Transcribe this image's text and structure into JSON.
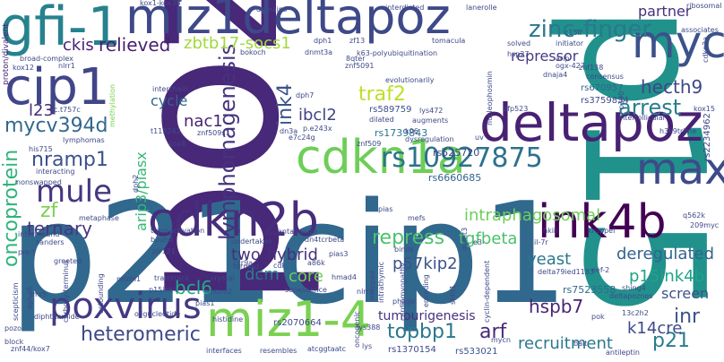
{
  "words": [
    {
      "text": "poz",
      "color": "#482878"
    },
    {
      "text": "p15",
      "color": "#21918c"
    },
    {
      "text": "p21cip1",
      "color": "#31688e"
    },
    {
      "text": "gfi-1",
      "color": "#26828e"
    },
    {
      "text": "miz1deltapoz",
      "color": "#3e4989"
    },
    {
      "text": "deltapoz",
      "color": "#482173"
    },
    {
      "text": "myc",
      "color": "#3b528b"
    },
    {
      "text": "cip1",
      "color": "#404688"
    },
    {
      "text": "cdkn1a",
      "color": "#6ece58"
    },
    {
      "text": "cdkn2b",
      "color": "#472d7b"
    },
    {
      "text": "ink4b",
      "color": "#440154"
    },
    {
      "text": "max",
      "color": "#3e4a89"
    },
    {
      "text": "miz1-4",
      "color": "#7ad151"
    },
    {
      "text": "poxvirus",
      "color": "#443983"
    },
    {
      "text": "mule",
      "color": "#453781"
    },
    {
      "text": "zinc-finger",
      "color": "#2a788e"
    },
    {
      "text": "rs10927875",
      "color": "#2c728e"
    },
    {
      "text": "lymphomagenesis",
      "color": "#46337f"
    },
    {
      "text": "oncoprotein",
      "color": "#2fb47c"
    },
    {
      "text": "relieved",
      "color": "#481f70"
    },
    {
      "text": "zbtb17-socs1",
      "color": "#9fda3a"
    },
    {
      "text": "traf2",
      "color": "#bddf26"
    },
    {
      "text": "ink4",
      "color": "#3b528b"
    },
    {
      "text": "ibcl2",
      "color": "#414487"
    },
    {
      "text": "cycle",
      "color": "#32658e"
    },
    {
      "text": "nac1",
      "color": "#482475"
    },
    {
      "text": "arrest",
      "color": "#287d8e"
    },
    {
      "text": "hecth9",
      "color": "#3f4788"
    },
    {
      "text": "mycv394d",
      "color": "#31688e"
    },
    {
      "text": "nramp1",
      "color": "#3b528b"
    },
    {
      "text": "l23",
      "color": "#472c7a"
    },
    {
      "text": "ckis",
      "color": "#482173"
    },
    {
      "text": "repressor",
      "color": "#443a83"
    },
    {
      "text": "partner",
      "color": "#46307e"
    },
    {
      "text": "arip3/piasx",
      "color": "#35b779"
    },
    {
      "text": "intraphagosomal",
      "color": "#6ece58"
    },
    {
      "text": "repress",
      "color": "#4ac16d"
    },
    {
      "text": "tgfbeta",
      "color": "#4ac16d"
    },
    {
      "text": "yeast",
      "color": "#2a788e"
    },
    {
      "text": "deregulated",
      "color": "#33638d"
    },
    {
      "text": "p57kip2",
      "color": "#3b528b"
    },
    {
      "text": "zf",
      "color": "#7ad151"
    },
    {
      "text": "ternary",
      "color": "#453781"
    },
    {
      "text": "two-hybrid",
      "color": "#46307e"
    },
    {
      "text": "dcm",
      "color": "#277f8e"
    },
    {
      "text": "core",
      "color": "#6ece58"
    },
    {
      "text": "bcl6",
      "color": "#22a884"
    },
    {
      "text": "heteromeric",
      "color": "#3e4989"
    },
    {
      "text": "topbp1",
      "color": "#2a788e"
    },
    {
      "text": "arf",
      "color": "#482878"
    },
    {
      "text": "recruitment",
      "color": "#2a788e"
    },
    {
      "text": "hspb7",
      "color": "#482475"
    },
    {
      "text": "p21",
      "color": "#287d8e"
    },
    {
      "text": "inr",
      "color": "#3b528b"
    },
    {
      "text": "k14cre",
      "color": "#3e4989"
    },
    {
      "text": "p15ink4b",
      "color": "#20a386"
    },
    {
      "text": "screen",
      "color": "#3b528b"
    },
    {
      "text": "tumourigenesis",
      "color": "#46307e"
    },
    {
      "text": "rs7523558",
      "color": "#31688e"
    },
    {
      "text": "rs6660685",
      "color": "#33638d"
    },
    {
      "text": "rs3759834",
      "color": "#3e4989"
    },
    {
      "text": "rs1739843",
      "color": "#2c728e"
    },
    {
      "text": "rs525720",
      "color": "#404688"
    },
    {
      "text": "rs589759",
      "color": "#3b528b"
    },
    {
      "text": "rs670957",
      "color": "#31688e"
    },
    {
      "text": "rs2070664",
      "color": "#3e4989"
    },
    {
      "text": "rs1370154",
      "color": "#3e4989"
    },
    {
      "text": "rs533021",
      "color": "#3b528b"
    },
    {
      "text": "rs2234962",
      "color": "#3e4989"
    },
    {
      "text": "proton/divalent",
      "color": "#482475"
    },
    {
      "text": "kox1-kox38",
      "color": "#3e4989"
    },
    {
      "text": "domains",
      "color": "#3e4989"
    },
    {
      "text": "interdicted",
      "color": "#3e4989"
    },
    {
      "text": "lanerolle",
      "color": "#3e4989"
    },
    {
      "text": "ribosomal",
      "color": "#3e4989"
    },
    {
      "text": "initiator",
      "color": "#3e4989"
    },
    {
      "text": "associates",
      "color": "#3e4989"
    },
    {
      "text": "broad-complex",
      "color": "#3e4989"
    },
    {
      "text": "kox12",
      "color": "#3e4989"
    },
    {
      "text": "nlrr1",
      "color": "#3e4989"
    },
    {
      "text": "methylation",
      "color": "#7ad151"
    },
    {
      "text": "c.t757c",
      "color": "#3e4989"
    },
    {
      "text": "lymphomas",
      "color": "#3e4989"
    },
    {
      "text": "his715",
      "color": "#3e4989"
    },
    {
      "text": "interacting",
      "color": "#3e4989"
    },
    {
      "text": "nonswapped",
      "color": "#3e4989"
    },
    {
      "text": "metaphase",
      "color": "#3e4989"
    },
    {
      "text": "intermound",
      "color": "#3e4989"
    },
    {
      "text": "sanders",
      "color": "#3e4989"
    },
    {
      "text": "carboxy-terminus",
      "color": "#3e4989"
    },
    {
      "text": "scepticism",
      "color": "#3e4989"
    },
    {
      "text": "diphthamide",
      "color": "#3e4989"
    },
    {
      "text": "znf44/kox7",
      "color": "#3e4989"
    },
    {
      "text": "interfaces",
      "color": "#3e4989"
    },
    {
      "text": "resembles",
      "color": "#3e4989"
    },
    {
      "text": "atcggtaatc",
      "color": "#3e4989"
    },
    {
      "text": "oncogenic",
      "color": "#3e4989"
    },
    {
      "text": "bait",
      "color": "#3e4989"
    },
    {
      "text": "antileptin",
      "color": "#3e4989"
    },
    {
      "text": "block",
      "color": "#3e4989"
    },
    {
      "text": "pozo",
      "color": "#3e4989"
    },
    {
      "text": "oligucleotide",
      "color": "#3e4989"
    },
    {
      "text": "histidine",
      "color": "#3e4989"
    },
    {
      "text": "p15ink4",
      "color": "#3e4989"
    },
    {
      "text": "pias1",
      "color": "#3e4989"
    },
    {
      "text": "mizm2",
      "color": "#3e4989"
    },
    {
      "text": "tramtrack",
      "color": "#3e4989"
    },
    {
      "text": "crystal",
      "color": "#3e4989"
    },
    {
      "text": "senescence",
      "color": "#3e4989"
    },
    {
      "text": "termed",
      "color": "#3e4989"
    },
    {
      "text": "cdk",
      "color": "#3e4989"
    },
    {
      "text": "a86k",
      "color": "#3e4989"
    },
    {
      "text": "cz13",
      "color": "#3e4989"
    },
    {
      "text": "hmad4",
      "color": "#3e4989"
    },
    {
      "text": "nlrr3",
      "color": "#3e4989"
    },
    {
      "text": "phage",
      "color": "#3e4989"
    },
    {
      "text": "mapped",
      "color": "#3e4989"
    },
    {
      "text": "pias3",
      "color": "#3e4989"
    },
    {
      "text": "undertaken",
      "color": "#3e4989"
    },
    {
      "text": "transactivation",
      "color": "#3e4989"
    },
    {
      "text": "bound",
      "color": "#3e4989"
    },
    {
      "text": "antagonize",
      "color": "#3e4989"
    },
    {
      "text": "pias",
      "color": "#3e4989"
    },
    {
      "text": "mefs",
      "color": "#3e4989"
    },
    {
      "text": "binds",
      "color": "#3e4989"
    },
    {
      "text": "dn4tcrbeta",
      "color": "#3e4989"
    },
    {
      "text": "e3",
      "color": "#3e4989"
    },
    {
      "text": "il-7r",
      "color": "#3e4989"
    },
    {
      "text": "kruppel",
      "color": "#3e4989"
    },
    {
      "text": "hkiii",
      "color": "#3e4989"
    },
    {
      "text": "delta79ied1183",
      "color": "#3e4989"
    },
    {
      "text": "eef-2",
      "color": "#3e4989"
    },
    {
      "text": "shing4",
      "color": "#3e4989"
    },
    {
      "text": "deltapoznes",
      "color": "#3e4989"
    },
    {
      "text": "13c2h2",
      "color": "#3e4989"
    },
    {
      "text": "pok",
      "color": "#3e4989"
    },
    {
      "text": "q562k",
      "color": "#3e4989"
    },
    {
      "text": "209myc",
      "color": "#3e4989"
    },
    {
      "text": "h3k9trime",
      "color": "#3e4989"
    },
    {
      "text": "kox15",
      "color": "#3e4989"
    },
    {
      "text": "interfollicular",
      "color": "#3e4989"
    },
    {
      "text": "zfp523",
      "color": "#3e4989"
    },
    {
      "text": "p300",
      "color": "#3e4989"
    },
    {
      "text": "znf138",
      "color": "#3e4989"
    },
    {
      "text": "consensus",
      "color": "#3e4989"
    },
    {
      "text": "dnaja4",
      "color": "#3e4989"
    },
    {
      "text": "arip",
      "color": "#3e4989"
    },
    {
      "text": "solved",
      "color": "#3e4989"
    },
    {
      "text": "c15lr",
      "color": "#3e4989"
    },
    {
      "text": "hsp27",
      "color": "#3e4989"
    },
    {
      "text": "nucleophosmin",
      "color": "#3e4989"
    },
    {
      "text": "evolutionarily",
      "color": "#3e4989"
    },
    {
      "text": "k63-polyubiquitination",
      "color": "#3e4989"
    },
    {
      "text": "tomacula",
      "color": "#3e4989"
    },
    {
      "text": "zf13",
      "color": "#3e4989"
    },
    {
      "text": "dnmt3a",
      "color": "#3e4989"
    },
    {
      "text": "bokoch",
      "color": "#3e4989"
    },
    {
      "text": "dph1",
      "color": "#3e4989"
    },
    {
      "text": "8qter",
      "color": "#3e4989"
    },
    {
      "text": "znf5091",
      "color": "#3e4989"
    },
    {
      "text": "interchain",
      "color": "#3e4989"
    },
    {
      "text": "dph7",
      "color": "#3e4989"
    },
    {
      "text": "p.e243x",
      "color": "#3e4989"
    },
    {
      "text": "dn3a",
      "color": "#3e4989"
    },
    {
      "text": "e7c24g",
      "color": "#3e4989"
    },
    {
      "text": "znf509",
      "color": "#3e4989"
    },
    {
      "text": "dilated",
      "color": "#3e4989"
    },
    {
      "text": "lys472",
      "color": "#3e4989"
    },
    {
      "text": "augments",
      "color": "#3e4989"
    },
    {
      "text": "dysregulation",
      "color": "#3e4989"
    },
    {
      "text": "k06",
      "color": "#3e4989"
    },
    {
      "text": "uv",
      "color": "#3e4989"
    },
    {
      "text": "znf509s1",
      "color": "#3e4989"
    },
    {
      "text": "t113242",
      "color": "#3e4989"
    },
    {
      "text": "kox4",
      "color": "#3e4989"
    },
    {
      "text": "dph2",
      "color": "#3e4989"
    },
    {
      "text": "imr5",
      "color": "#3e4989"
    },
    {
      "text": "epha6",
      "color": "#3e4989"
    },
    {
      "text": "pre-t",
      "color": "#3e4989"
    },
    {
      "text": "greeted",
      "color": "#3e4989"
    },
    {
      "text": "astounding",
      "color": "#3e4989"
    },
    {
      "text": "pir121",
      "color": "#3e4989"
    },
    {
      "text": "ccr9a",
      "color": "#3e4989"
    },
    {
      "text": "mizm1",
      "color": "#3e4989"
    },
    {
      "text": "lys388",
      "color": "#3e4989"
    },
    {
      "text": "intrathymic",
      "color": "#3e4989"
    },
    {
      "text": "cardiomyopathy",
      "color": "#3e4989"
    },
    {
      "text": "encoding",
      "color": "#3e4989"
    },
    {
      "text": "cyclin-dependent",
      "color": "#3e4989"
    },
    {
      "text": "shfd1",
      "color": "#3e4989"
    },
    {
      "text": "mycn",
      "color": "#3e4989"
    },
    {
      "text": "dnmt3",
      "color": "#3e4989"
    },
    {
      "text": "cdkn2a",
      "color": "#3e4989"
    },
    {
      "text": "ogx-427",
      "color": "#3e4989"
    },
    {
      "text": "lys",
      "color": "#3e4989"
    }
  ]
}
